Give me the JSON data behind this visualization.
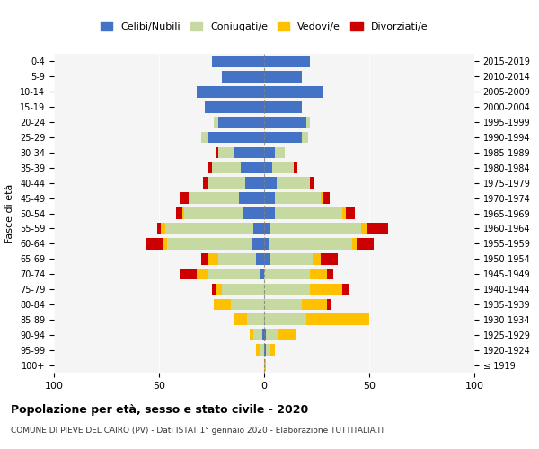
{
  "age_groups": [
    "100+",
    "95-99",
    "90-94",
    "85-89",
    "80-84",
    "75-79",
    "70-74",
    "65-69",
    "60-64",
    "55-59",
    "50-54",
    "45-49",
    "40-44",
    "35-39",
    "30-34",
    "25-29",
    "20-24",
    "15-19",
    "10-14",
    "5-9",
    "0-4"
  ],
  "birth_years": [
    "≤ 1919",
    "1920-1924",
    "1925-1929",
    "1930-1934",
    "1935-1939",
    "1940-1944",
    "1945-1949",
    "1950-1954",
    "1955-1959",
    "1960-1964",
    "1965-1969",
    "1970-1974",
    "1975-1979",
    "1980-1984",
    "1985-1989",
    "1990-1994",
    "1995-1999",
    "2000-2004",
    "2005-2009",
    "2010-2014",
    "2015-2019"
  ],
  "male": {
    "celibe": [
      0,
      0,
      1,
      0,
      0,
      0,
      2,
      4,
      6,
      5,
      10,
      12,
      9,
      11,
      14,
      27,
      22,
      28,
      32,
      20,
      25
    ],
    "coniugato": [
      0,
      2,
      4,
      8,
      16,
      20,
      25,
      18,
      40,
      42,
      28,
      24,
      18,
      14,
      8,
      3,
      2,
      0,
      0,
      0,
      0
    ],
    "vedovo": [
      0,
      2,
      2,
      6,
      8,
      3,
      5,
      5,
      2,
      2,
      1,
      0,
      0,
      0,
      0,
      0,
      0,
      0,
      0,
      0,
      0
    ],
    "divorziato": [
      0,
      0,
      0,
      0,
      0,
      2,
      8,
      3,
      8,
      2,
      3,
      4,
      2,
      2,
      1,
      0,
      0,
      0,
      0,
      0,
      0
    ]
  },
  "female": {
    "nubile": [
      0,
      1,
      1,
      0,
      0,
      0,
      0,
      3,
      2,
      3,
      5,
      5,
      6,
      4,
      5,
      18,
      20,
      18,
      28,
      18,
      22
    ],
    "coniugata": [
      0,
      2,
      6,
      20,
      18,
      22,
      22,
      20,
      40,
      43,
      32,
      22,
      16,
      10,
      5,
      3,
      2,
      0,
      0,
      0,
      0
    ],
    "vedova": [
      1,
      2,
      8,
      30,
      12,
      15,
      8,
      4,
      2,
      3,
      2,
      1,
      0,
      0,
      0,
      0,
      0,
      0,
      0,
      0,
      0
    ],
    "divorziata": [
      0,
      0,
      0,
      0,
      2,
      3,
      3,
      8,
      8,
      10,
      4,
      3,
      2,
      2,
      0,
      0,
      0,
      0,
      0,
      0,
      0
    ]
  },
  "colors": {
    "celibe": "#4472c4",
    "coniugato": "#c5d9a0",
    "vedovo": "#ffc000",
    "divorziato": "#cc0000"
  },
  "title": "Popolazione per età, sesso e stato civile - 2020",
  "subtitle": "COMUNE DI PIEVE DEL CAIRO (PV) - Dati ISTAT 1° gennaio 2020 - Elaborazione TUTTITALIA.IT",
  "ylabel_left": "Fasce di età",
  "xlim": 100,
  "bg_color": "#f5f5f5",
  "legend_labels": [
    "Celibi/Nubili",
    "Coniugati/e",
    "Vedovi/e",
    "Divorziati/e"
  ]
}
